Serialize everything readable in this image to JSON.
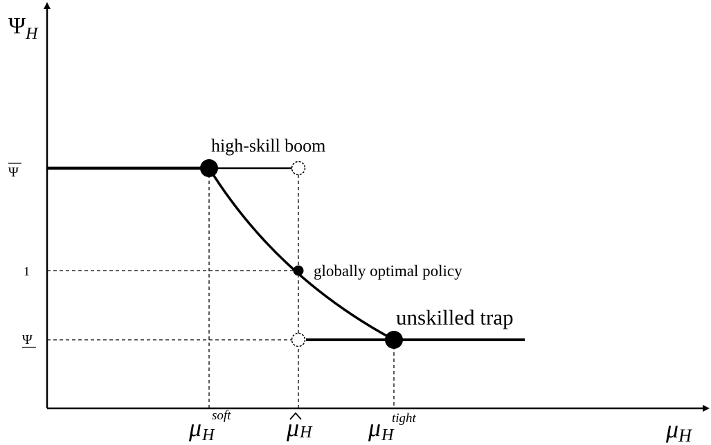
{
  "axes": {
    "y_symbol": "Ψ",
    "y_subscript": "H",
    "x_symbol": "μ",
    "x_subscript": "H"
  },
  "y_ticks": {
    "psi_bar": "Ψ",
    "one": "1",
    "psi_under": "Ψ"
  },
  "x_ticks": {
    "soft": {
      "symbol": "μ",
      "sub": "H",
      "sup": "soft"
    },
    "hat": {
      "symbol": "μ",
      "sub": "H"
    },
    "tight": {
      "symbol": "μ",
      "sub": "H",
      "sup": "tight"
    }
  },
  "annotations": {
    "high_skill_boom": "high-skill boom",
    "globally_optimal": "globally optimal policy",
    "unskilled_trap": "unskilled trap"
  },
  "colors": {
    "line": "#000000",
    "background": "#ffffff"
  }
}
